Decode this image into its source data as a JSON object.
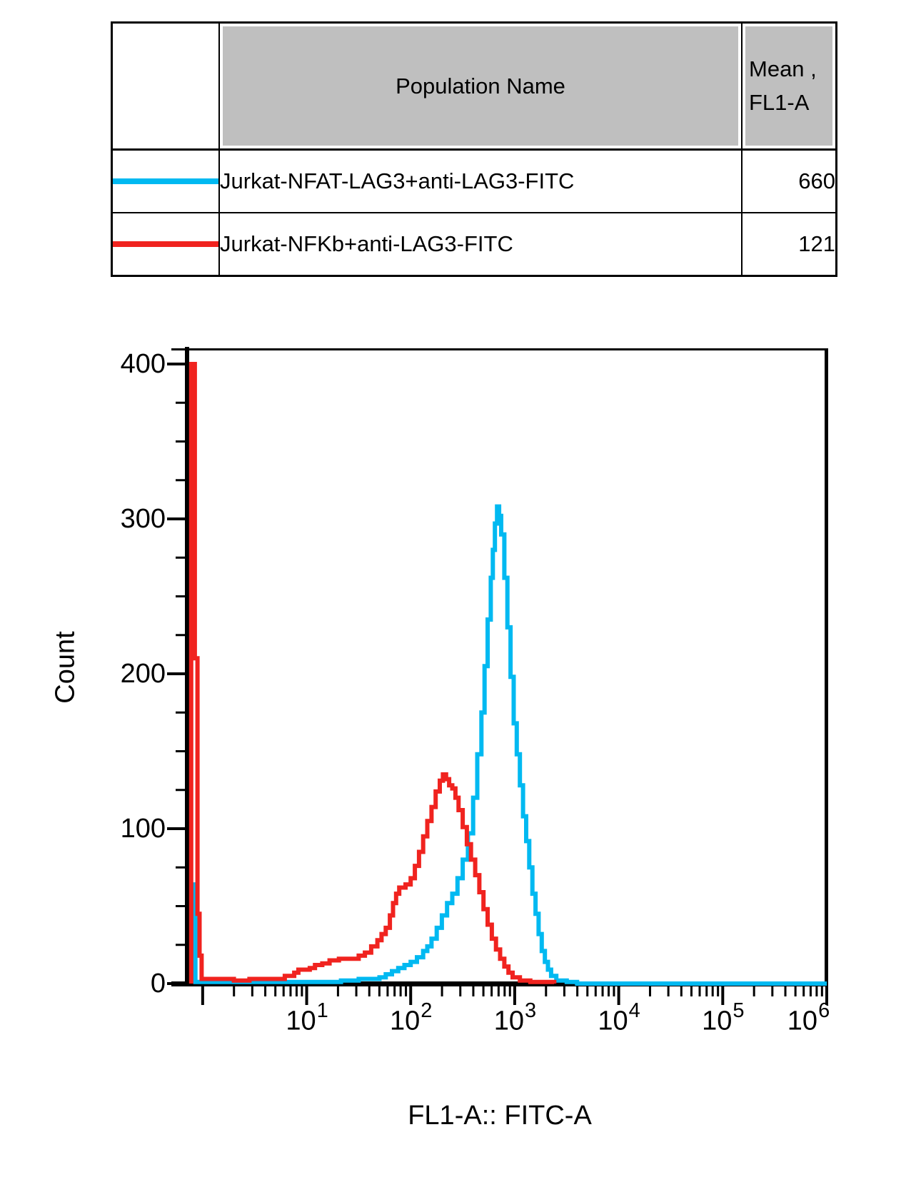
{
  "table": {
    "header": {
      "population": "Population Name",
      "mean_line1": "Mean ,",
      "mean_line2": "FL1-A"
    },
    "rows": [
      {
        "swatch_color": "#00b9f1",
        "population": "Jurkat-NFAT-LAG3+anti-LAG3-FITC",
        "mean": "660"
      },
      {
        "swatch_color": "#f0231f",
        "population": "Jurkat-NFKb+anti-LAG3-FITC",
        "mean": "121"
      }
    ]
  },
  "chart_data": {
    "type": "line",
    "subtype": "overlaid-histogram-outlines",
    "title": "",
    "xlabel": "FL1-A:: FITC-A",
    "ylabel": "Count",
    "x_scale": "log",
    "x_tick_base": "10",
    "x_tick_exponents": [
      1,
      2,
      3,
      4,
      5,
      6
    ],
    "x_log_range": [
      -0.15,
      6.0
    ],
    "ylim": [
      0,
      410
    ],
    "y_ticks": [
      0,
      100,
      200,
      300,
      400
    ],
    "y_minor_step": 25,
    "grid": false,
    "legend_position": "table-above",
    "series": [
      {
        "name": "Jurkat-NFAT-LAG3+anti-LAG3-FITC",
        "color": "#00b9f1",
        "mean_fl1a": 660,
        "peak_count": 308,
        "points_log10x_count": [
          [
            -0.105,
            64
          ],
          [
            -0.07,
            1
          ],
          [
            0.5,
            1
          ],
          [
            1.0,
            1
          ],
          [
            1.33,
            2
          ],
          [
            1.5,
            3
          ],
          [
            1.61,
            3
          ],
          [
            1.7,
            4
          ],
          [
            1.76,
            6
          ],
          [
            1.82,
            8
          ],
          [
            1.88,
            10
          ],
          [
            1.94,
            12
          ],
          [
            2.0,
            14
          ],
          [
            2.06,
            17
          ],
          [
            2.12,
            21
          ],
          [
            2.16,
            24
          ],
          [
            2.2,
            29
          ],
          [
            2.25,
            36
          ],
          [
            2.3,
            44
          ],
          [
            2.35,
            52
          ],
          [
            2.4,
            58
          ],
          [
            2.45,
            68
          ],
          [
            2.5,
            80
          ],
          [
            2.55,
            97
          ],
          [
            2.6,
            120
          ],
          [
            2.64,
            148
          ],
          [
            2.68,
            175
          ],
          [
            2.71,
            205
          ],
          [
            2.74,
            235
          ],
          [
            2.77,
            262
          ],
          [
            2.79,
            280
          ],
          [
            2.81,
            297
          ],
          [
            2.83,
            308
          ],
          [
            2.85,
            302
          ],
          [
            2.87,
            290
          ],
          [
            2.9,
            262
          ],
          [
            2.93,
            230
          ],
          [
            2.96,
            198
          ],
          [
            2.99,
            168
          ],
          [
            3.02,
            148
          ],
          [
            3.05,
            128
          ],
          [
            3.08,
            108
          ],
          [
            3.11,
            92
          ],
          [
            3.14,
            75
          ],
          [
            3.17,
            58
          ],
          [
            3.2,
            45
          ],
          [
            3.23,
            32
          ],
          [
            3.26,
            21
          ],
          [
            3.29,
            14
          ],
          [
            3.32,
            9
          ],
          [
            3.35,
            5
          ],
          [
            3.4,
            2
          ],
          [
            3.5,
            1
          ],
          [
            3.6,
            0
          ],
          [
            6.0,
            0
          ]
        ]
      },
      {
        "name": "Jurkat-NFKb+anti-LAG3-FITC",
        "color": "#f0231f",
        "mean_fl1a": 121,
        "peak_count": 135,
        "points_log10x_count": [
          [
            -0.11,
            400
          ],
          [
            -0.075,
            210
          ],
          [
            -0.05,
            45
          ],
          [
            -0.03,
            18
          ],
          [
            -0.01,
            3
          ],
          [
            0.3,
            2
          ],
          [
            0.45,
            3
          ],
          [
            0.62,
            3
          ],
          [
            0.79,
            5
          ],
          [
            0.88,
            7
          ],
          [
            0.92,
            9
          ],
          [
            1.03,
            10
          ],
          [
            1.08,
            12
          ],
          [
            1.15,
            13
          ],
          [
            1.22,
            15
          ],
          [
            1.31,
            16
          ],
          [
            1.42,
            16
          ],
          [
            1.5,
            18
          ],
          [
            1.56,
            20
          ],
          [
            1.62,
            24
          ],
          [
            1.68,
            28
          ],
          [
            1.72,
            32
          ],
          [
            1.76,
            36
          ],
          [
            1.8,
            44
          ],
          [
            1.83,
            52
          ],
          [
            1.86,
            58
          ],
          [
            1.89,
            62
          ],
          [
            1.95,
            64
          ],
          [
            2.0,
            68
          ],
          [
            2.04,
            76
          ],
          [
            2.08,
            85
          ],
          [
            2.12,
            95
          ],
          [
            2.16,
            105
          ],
          [
            2.2,
            114
          ],
          [
            2.24,
            124
          ],
          [
            2.28,
            131
          ],
          [
            2.31,
            135
          ],
          [
            2.34,
            132
          ],
          [
            2.37,
            128
          ],
          [
            2.4,
            126
          ],
          [
            2.43,
            120
          ],
          [
            2.46,
            112
          ],
          [
            2.5,
            101
          ],
          [
            2.54,
            90
          ],
          [
            2.58,
            80
          ],
          [
            2.62,
            70
          ],
          [
            2.66,
            59
          ],
          [
            2.7,
            48
          ],
          [
            2.74,
            38
          ],
          [
            2.78,
            29
          ],
          [
            2.82,
            22
          ],
          [
            2.86,
            16
          ],
          [
            2.9,
            11
          ],
          [
            2.94,
            7
          ],
          [
            2.98,
            4
          ],
          [
            3.05,
            2
          ],
          [
            3.15,
            1
          ],
          [
            3.38,
            0
          ]
        ]
      }
    ]
  }
}
